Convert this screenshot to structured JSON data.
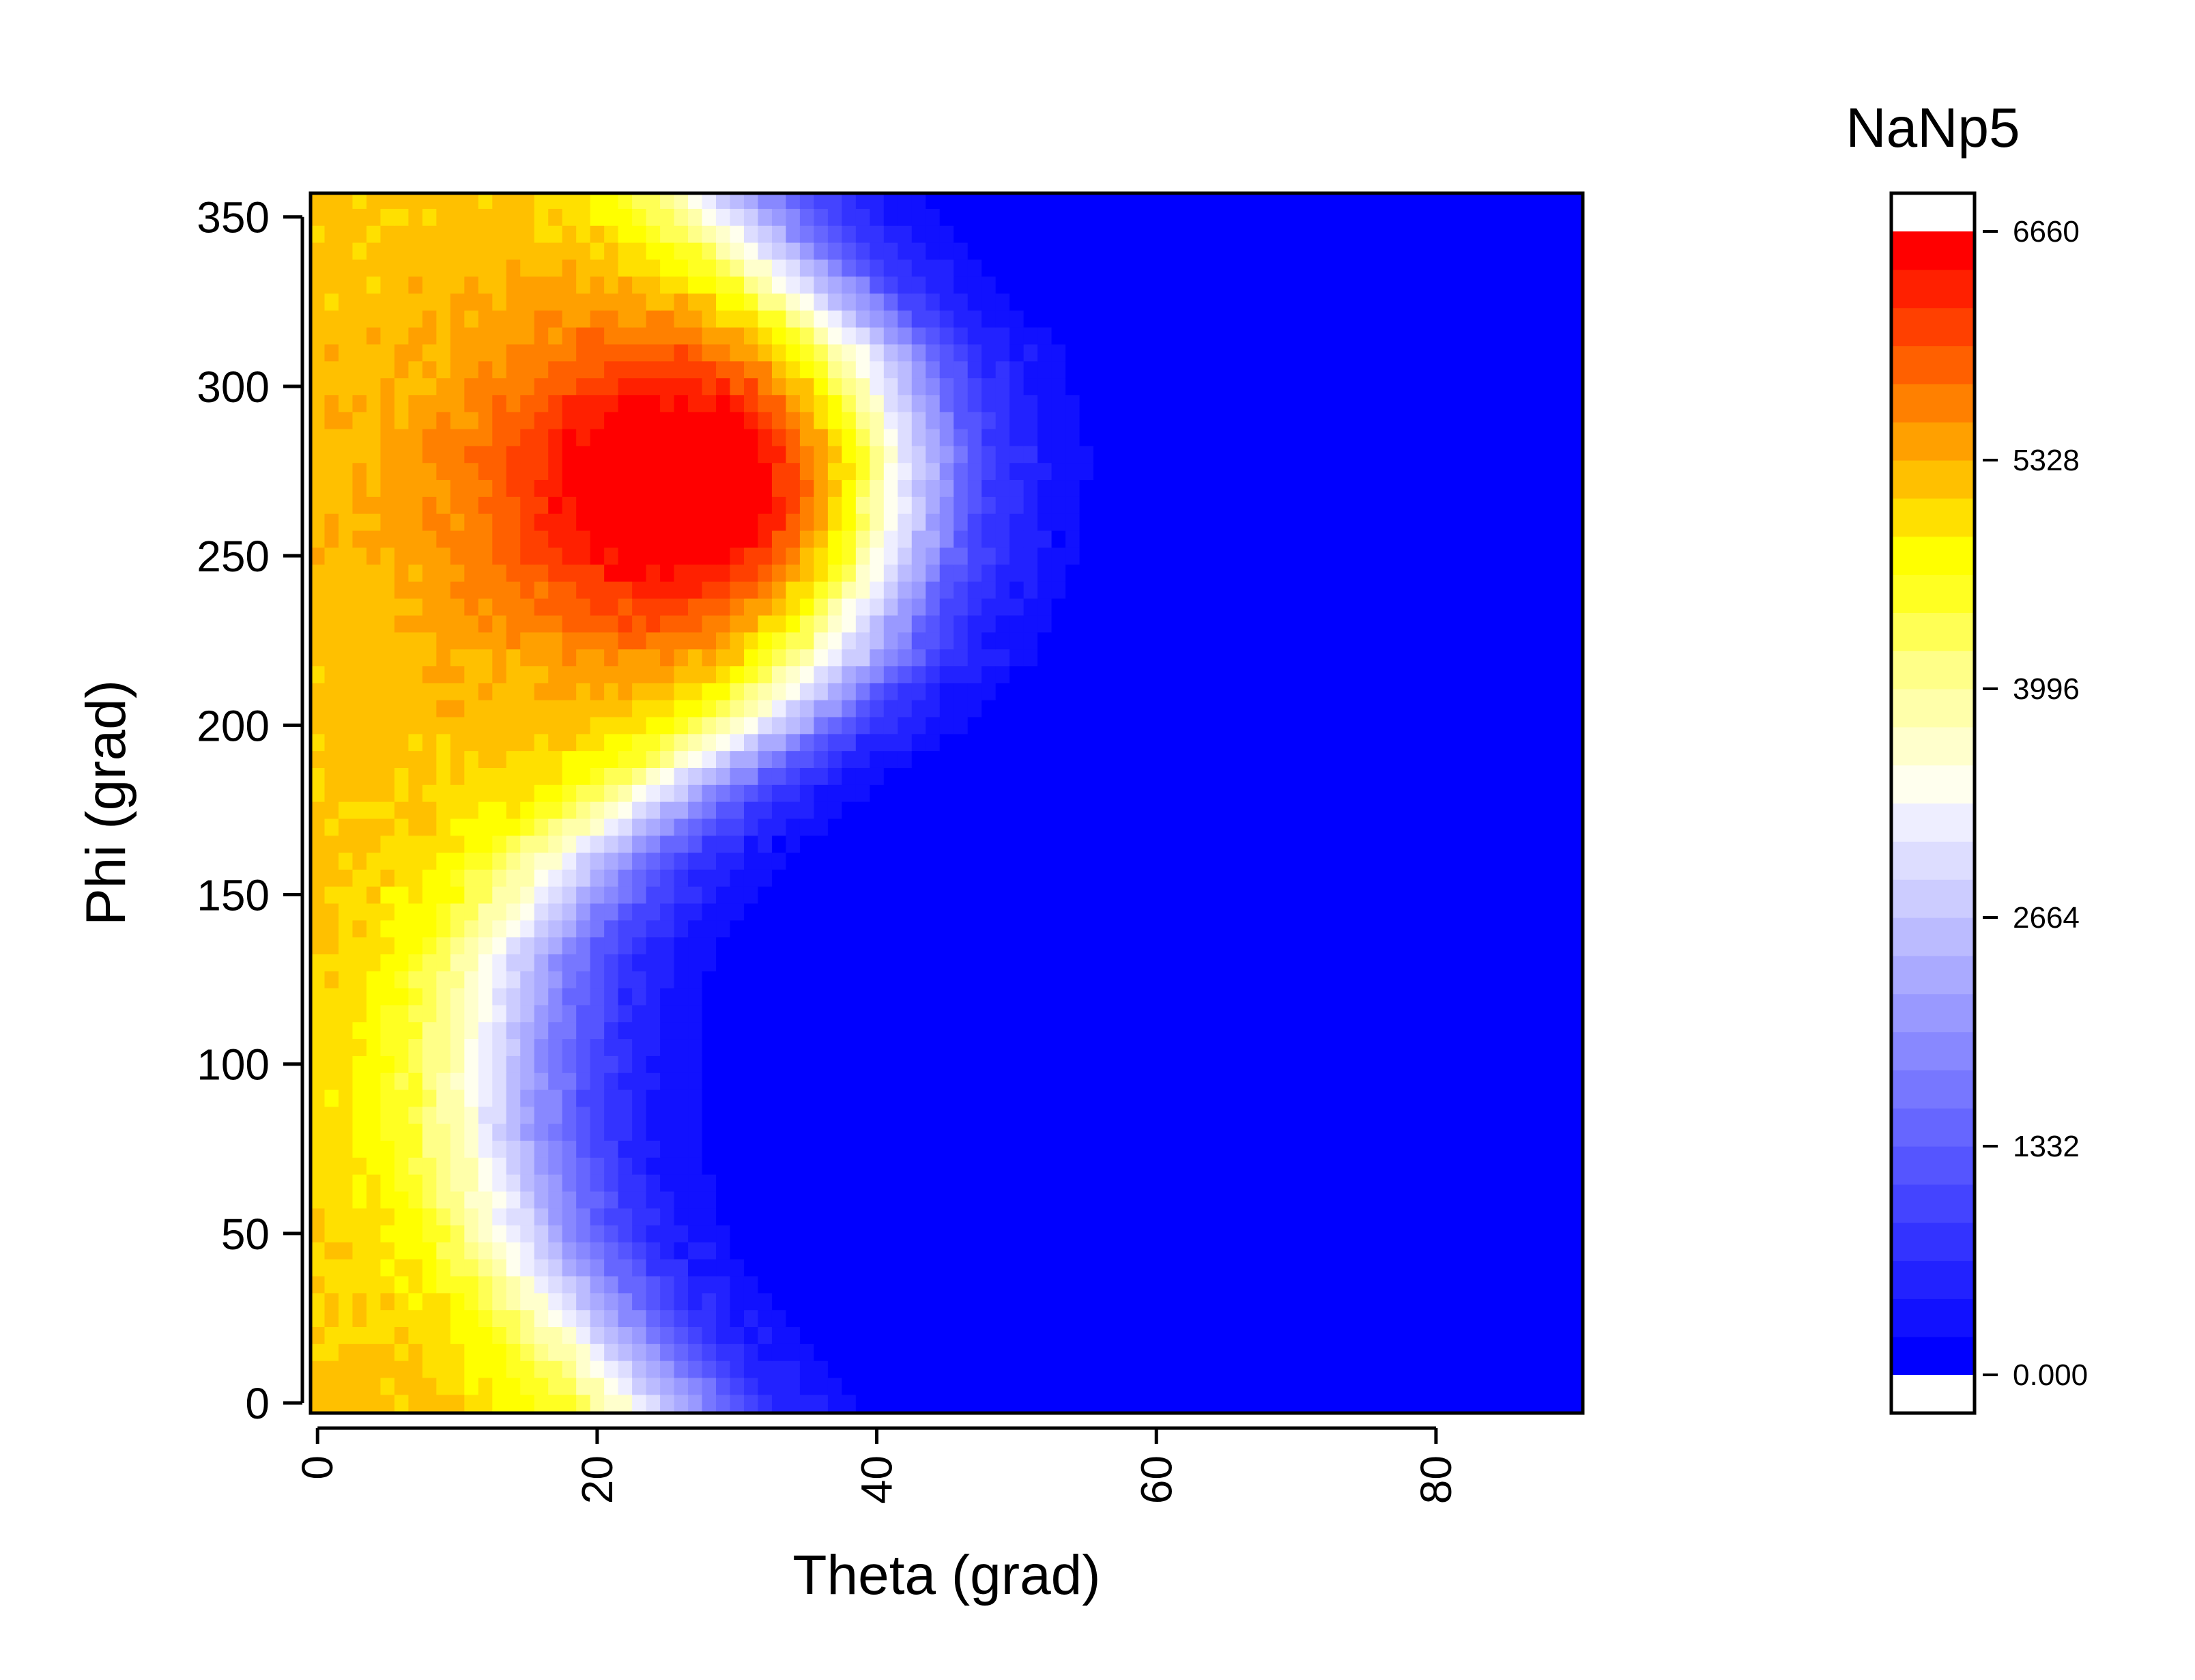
{
  "chart_data": {
    "type": "heatmap",
    "title": "NaNp5",
    "xlabel": "Theta (grad)",
    "ylabel": "Phi (grad)",
    "xlim": [
      -0.5,
      90.5
    ],
    "ylim": [
      -3,
      357
    ],
    "x_ticks": [
      0,
      20,
      40,
      60,
      80
    ],
    "y_ticks": [
      0,
      50,
      100,
      150,
      200,
      250,
      300,
      350
    ],
    "x_tick_labels": [
      "0",
      "20",
      "40",
      "60",
      "80"
    ],
    "y_tick_labels": [
      "0",
      "50",
      "100",
      "150",
      "200",
      "250",
      "300",
      "350"
    ],
    "grid": {
      "theta_step_deg": 1,
      "phi_step_deg": 5,
      "theta_range": [
        0,
        90
      ],
      "phi_range": [
        0,
        355
      ]
    },
    "value_range": [
      0,
      6660
    ],
    "colorbar": {
      "ticks": [
        0,
        1332,
        2664,
        3996,
        5328,
        6660
      ],
      "tick_labels": [
        "0.000",
        "1332",
        "2664",
        "3996",
        "5328",
        "6660"
      ],
      "levels": 30,
      "colors": [
        "#0000FF",
        "#1111FF",
        "#2222FF",
        "#3333FF",
        "#4444FF",
        "#5555FF",
        "#6666FF",
        "#7777FF",
        "#8888FF",
        "#9999FF",
        "#AAAAFF",
        "#BBBBFF",
        "#CCCCFF",
        "#DDDDFF",
        "#EEEEFF",
        "#FFFFEE",
        "#FFFFCC",
        "#FFFFAA",
        "#FFFF88",
        "#FFFF55",
        "#FFFF22",
        "#FFFF00",
        "#FFE000",
        "#FFC000",
        "#FFA000",
        "#FF8000",
        "#FF6000",
        "#FF4000",
        "#FF2000",
        "#FF0000"
      ]
    },
    "ridge_description": "theta boundary of the high region vs phi",
    "ridge_phi": [
      0,
      25,
      50,
      80,
      100,
      130,
      160,
      180,
      200,
      220,
      250,
      280,
      310,
      340,
      355
    ],
    "ridge_theta": [
      25,
      20,
      16,
      14,
      14,
      15,
      20,
      26,
      33,
      38,
      41,
      42,
      40,
      33,
      30
    ],
    "peak": {
      "theta": 27,
      "phi": 270,
      "value": 6660,
      "theta_spread": 14,
      "phi_spread": 45
    },
    "low_value": 0
  }
}
